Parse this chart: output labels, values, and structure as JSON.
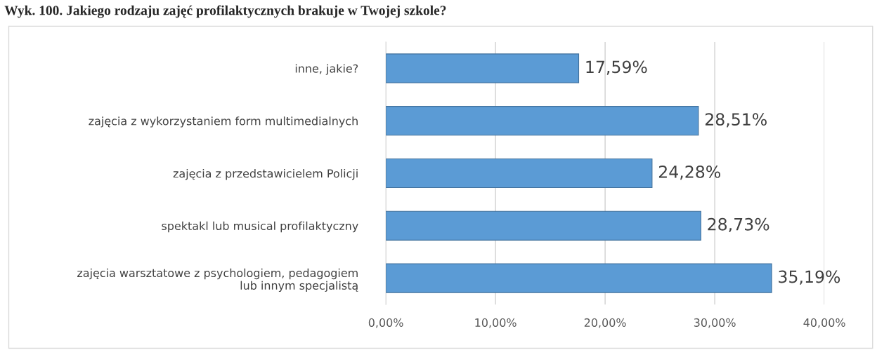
{
  "chart_data": {
    "type": "bar",
    "orientation": "horizontal",
    "title": "Wyk. 100. Jakiego rodzaju zajęć profilaktycznych brakuje w Twojej szkole?",
    "categories": [
      "inne, jakie?",
      "zajęcia z wykorzystaniem form multimedialnych",
      "zajęcia z przedstawicielem Policji",
      "spektakl lub musical profilaktyczny",
      "zajęcia warsztatowe z psychologiem, pedagogiem\nlub innym specjalistą"
    ],
    "values": [
      17.59,
      28.51,
      24.28,
      28.73,
      35.19
    ],
    "value_labels": [
      "17,59%",
      "28,51%",
      "24,28%",
      "28,73%",
      "35,19%"
    ],
    "color": "#5b9bd5",
    "xlim": [
      0,
      40
    ],
    "xticks": [
      {
        "value": 0,
        "label": "0,00%"
      },
      {
        "value": 10,
        "label": "10,00%"
      },
      {
        "value": 20,
        "label": "20,00%"
      },
      {
        "value": 30,
        "label": "30,00%"
      },
      {
        "value": 40,
        "label": "40,00%"
      }
    ],
    "grid": "x",
    "legend": false
  }
}
